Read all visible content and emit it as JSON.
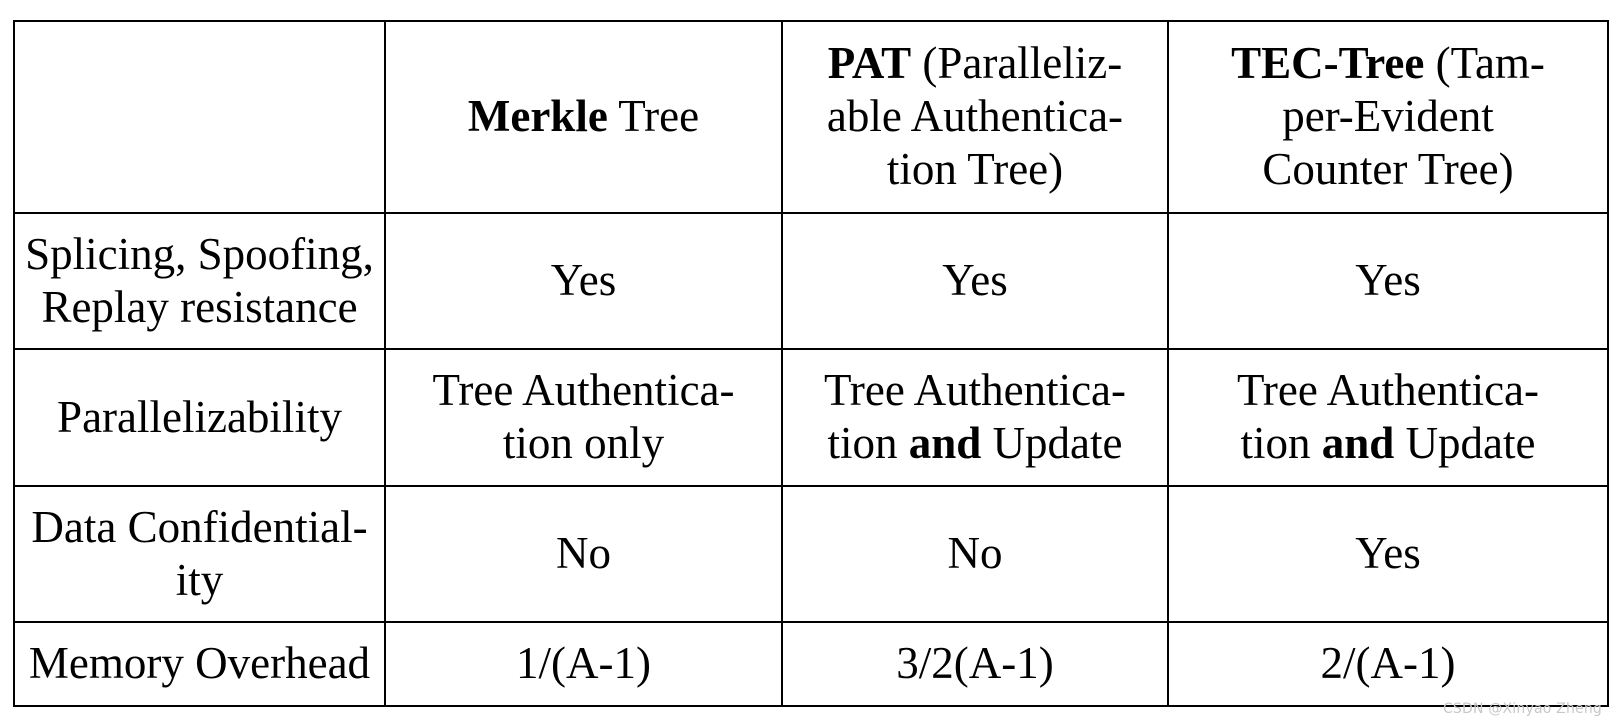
{
  "table": {
    "header": {
      "corner": "",
      "merkle": {
        "name_bold": "Merkle",
        "name_rest": " Tree"
      },
      "pat": {
        "line1_bold": "PAT",
        "line1_rest": " (Paralleliz-",
        "line2": "able Authentica-",
        "line3": "tion Tree)"
      },
      "tec": {
        "line1_bold": "TEC-Tree",
        "line1_rest": " (Tam-",
        "line2": "per-Evident",
        "line3": "Counter Tree)"
      }
    },
    "rows": [
      {
        "label_line1": "Splicing, Spoofing,",
        "label_line2": "Replay resistance",
        "merkle": "Yes",
        "pat": "Yes",
        "tec": "Yes"
      },
      {
        "label": "Parallelizability",
        "merkle_line1": "Tree Authentica-",
        "merkle_line2": "tion only",
        "pat_line1": "Tree Authentica-",
        "pat_line2_pre": "tion ",
        "pat_line2_bold": "and",
        "pat_line2_post": " Update",
        "tec_line1": "Tree Authentica-",
        "tec_line2_pre": "tion ",
        "tec_line2_bold": "and",
        "tec_line2_post": " Update"
      },
      {
        "label_line1": "Data Confidential-",
        "label_line2": "ity",
        "merkle": "No",
        "pat": "No",
        "tec": "Yes"
      },
      {
        "label": "Memory Overhead",
        "merkle": "1/(A-1)",
        "pat": "3/2(A-1)",
        "tec": "2/(A-1)"
      }
    ]
  },
  "watermark": "CSDN @Xinyao Zheng"
}
